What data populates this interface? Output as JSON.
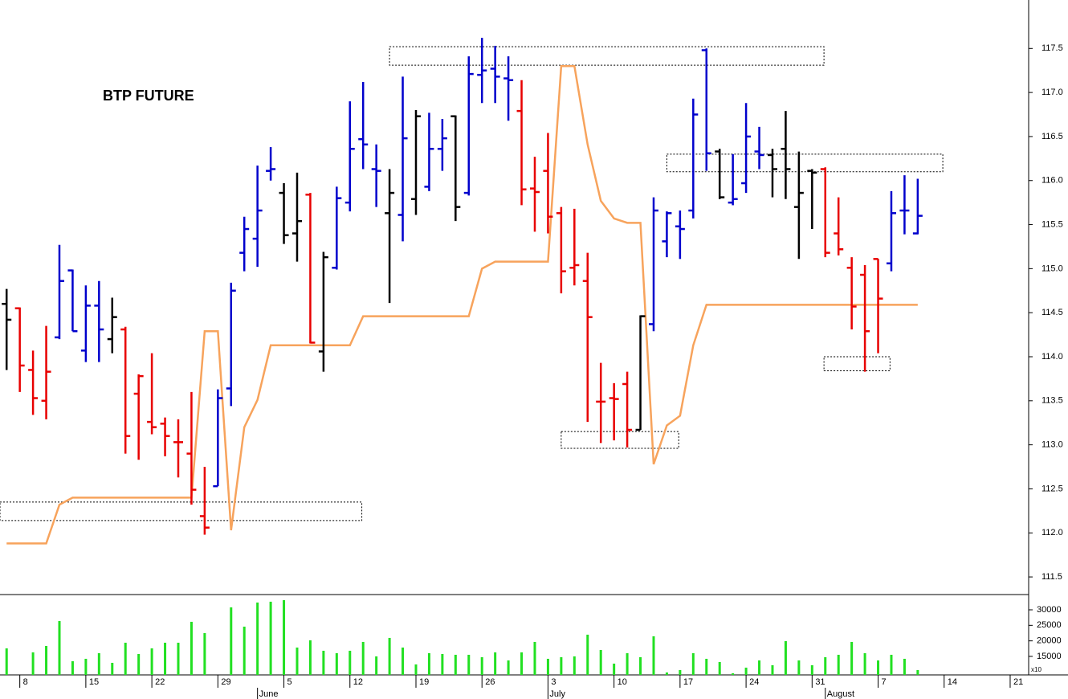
{
  "chart_data": {
    "type": "ohlc",
    "title": "BTP FUTURE",
    "x": [
      0,
      1,
      2,
      3,
      4,
      5,
      6,
      7,
      8,
      9,
      10,
      11,
      12,
      13,
      14,
      15,
      16,
      17,
      18,
      19,
      20,
      21,
      22,
      23,
      24,
      25,
      26,
      27,
      28,
      29,
      30,
      31,
      32,
      33,
      34,
      35,
      36,
      37,
      38,
      39,
      40,
      41,
      42,
      43,
      44,
      45,
      46,
      47,
      48,
      49,
      50,
      51,
      52,
      53,
      54,
      55,
      56,
      57,
      58,
      59,
      60,
      61,
      62,
      63,
      64,
      65,
      66,
      67,
      68,
      69
    ],
    "open": [
      114.6,
      114.55,
      113.85,
      113.5,
      114.22,
      114.98,
      114.07,
      114.58,
      114.2,
      114.31,
      113.58,
      113.26,
      113.24,
      113.03,
      112.9,
      112.19,
      112.53,
      113.64,
      115.18,
      115.34,
      116.11,
      115.86,
      115.4,
      115.84,
      114.06,
      115.01,
      115.75,
      116.47,
      116.13,
      115.63,
      115.61,
      115.79,
      115.93,
      116.36,
      116.73,
      115.86,
      117.2,
      117.27,
      117.16,
      116.79,
      115.91,
      116.11,
      115.63,
      115.01,
      114.86,
      113.49,
      113.53,
      113.69,
      113.17,
      114.37,
      115.31,
      115.48,
      115.66,
      117.48,
      116.33,
      115.75,
      115.97,
      116.33,
      116.29,
      116.36,
      115.7,
      116.11,
      116.13,
      115.4,
      115.01,
      114.93,
      115.11,
      115.06,
      115.66,
      115.4
    ],
    "high": [
      114.77,
      114.56,
      114.07,
      114.35,
      115.27,
      114.99,
      114.81,
      114.86,
      114.67,
      114.34,
      113.8,
      114.04,
      113.31,
      113.29,
      113.6,
      112.75,
      113.63,
      114.84,
      115.59,
      116.17,
      116.38,
      115.97,
      116.09,
      115.86,
      115.19,
      115.93,
      116.9,
      117.12,
      116.41,
      116.13,
      117.18,
      116.8,
      116.77,
      116.7,
      116.74,
      117.41,
      117.62,
      117.53,
      117.41,
      117.14,
      116.27,
      116.54,
      115.7,
      115.68,
      115.18,
      113.93,
      113.7,
      113.83,
      114.47,
      115.81,
      115.65,
      115.66,
      116.93,
      117.5,
      116.36,
      116.3,
      116.88,
      116.61,
      116.36,
      116.79,
      116.33,
      116.13,
      116.15,
      115.81,
      115.13,
      115.04,
      115.11,
      115.88,
      116.06,
      116.02
    ],
    "low": [
      113.85,
      113.6,
      113.34,
      113.29,
      114.2,
      114.29,
      113.94,
      113.94,
      114.04,
      112.9,
      112.83,
      113.12,
      112.87,
      112.63,
      112.32,
      111.98,
      112.53,
      113.44,
      114.97,
      115.02,
      116.0,
      115.28,
      115.08,
      114.15,
      113.83,
      114.99,
      115.65,
      116.13,
      115.7,
      114.61,
      115.31,
      115.61,
      115.88,
      116.11,
      115.54,
      115.83,
      116.88,
      116.88,
      116.68,
      115.72,
      115.42,
      115.4,
      114.72,
      114.81,
      113.26,
      113.02,
      113.05,
      112.97,
      113.17,
      114.29,
      115.13,
      115.11,
      115.57,
      116.11,
      115.79,
      115.72,
      115.86,
      116.13,
      115.81,
      115.79,
      115.11,
      115.45,
      115.13,
      115.15,
      114.31,
      113.83,
      114.04,
      114.97,
      115.39,
      115.39
    ],
    "close": [
      114.42,
      113.9,
      113.53,
      113.83,
      114.86,
      114.29,
      114.58,
      114.31,
      114.45,
      113.1,
      113.78,
      113.2,
      113.1,
      113.03,
      112.49,
      112.06,
      113.53,
      114.75,
      115.45,
      115.66,
      116.13,
      115.38,
      115.54,
      114.16,
      115.13,
      115.8,
      116.36,
      116.41,
      116.11,
      115.86,
      116.48,
      116.73,
      116.36,
      116.48,
      115.7,
      117.21,
      117.25,
      117.18,
      117.14,
      115.9,
      115.87,
      115.59,
      114.97,
      115.04,
      114.45,
      113.49,
      113.52,
      113.17,
      114.46,
      115.66,
      115.63,
      115.45,
      116.75,
      116.31,
      115.81,
      115.79,
      116.5,
      116.29,
      116.13,
      116.13,
      115.86,
      116.09,
      115.18,
      115.22,
      114.57,
      114.29,
      114.66,
      115.63,
      115.66,
      115.6
    ],
    "bar_colors": [
      "#000000",
      "#e80000",
      "#e80000",
      "#e80000",
      "#0000cc",
      "#0000cc",
      "#0000cc",
      "#0000cc",
      "#000000",
      "#e80000",
      "#e80000",
      "#e80000",
      "#e80000",
      "#e80000",
      "#e80000",
      "#e80000",
      "#0000cc",
      "#0000cc",
      "#0000cc",
      "#0000cc",
      "#0000cc",
      "#000000",
      "#000000",
      "#e80000",
      "#000000",
      "#0000cc",
      "#0000cc",
      "#0000cc",
      "#0000cc",
      "#000000",
      "#0000cc",
      "#000000",
      "#0000cc",
      "#0000cc",
      "#000000",
      "#0000cc",
      "#0000cc",
      "#0000cc",
      "#0000cc",
      "#e80000",
      "#e80000",
      "#e80000",
      "#e80000",
      "#e80000",
      "#e80000",
      "#e80000",
      "#e80000",
      "#e80000",
      "#000000",
      "#0000cc",
      "#0000cc",
      "#0000cc",
      "#0000cc",
      "#0000cc",
      "#000000",
      "#0000cc",
      "#0000cc",
      "#0000cc",
      "#000000",
      "#000000",
      "#000000",
      "#000000",
      "#e80000",
      "#e80000",
      "#e80000",
      "#e80000",
      "#e80000",
      "#0000cc",
      "#0000cc",
      "#0000cc"
    ],
    "line": {
      "color": "#f7a35c",
      "values": [
        111.88,
        111.88,
        111.88,
        111.88,
        112.32,
        112.4,
        112.4,
        112.4,
        112.4,
        112.4,
        112.4,
        112.4,
        112.4,
        112.4,
        112.4,
        114.29,
        114.29,
        112.03,
        113.2,
        113.51,
        114.13,
        114.13,
        114.13,
        114.13,
        114.13,
        114.13,
        114.13,
        114.46,
        114.46,
        114.46,
        114.46,
        114.46,
        114.46,
        114.46,
        114.46,
        114.46,
        115.0,
        115.08,
        115.08,
        115.08,
        115.08,
        115.08,
        117.3,
        117.3,
        116.41,
        115.77,
        115.57,
        115.52,
        115.52,
        112.78,
        113.22,
        113.33,
        114.13,
        114.59,
        114.59,
        114.59,
        114.59,
        114.59,
        114.59,
        114.59,
        114.59,
        114.59,
        114.59,
        114.59,
        114.59,
        114.59,
        114.59,
        114.59,
        114.59,
        114.59
      ]
    },
    "zones": [
      {
        "x": [
          29,
          61.9
        ],
        "y": [
          117.31,
          117.52
        ]
      },
      {
        "x": [
          -0.5,
          26.9
        ],
        "y": [
          112.14,
          112.35
        ]
      },
      {
        "x": [
          42,
          50.9
        ],
        "y": [
          112.96,
          113.15
        ]
      },
      {
        "x": [
          50,
          70.9
        ],
        "y": [
          116.1,
          116.3
        ]
      },
      {
        "x": [
          61.9,
          66.9
        ],
        "y": [
          113.84,
          114.0
        ]
      }
    ],
    "xlim": [
      -0.5,
      77.4
    ],
    "xticks": [
      {
        "value": 1,
        "label": "8"
      },
      {
        "value": 6,
        "label": "15"
      },
      {
        "value": 11,
        "label": "22"
      },
      {
        "value": 16,
        "label": "29"
      },
      {
        "value": 21,
        "label": "5"
      },
      {
        "value": 26,
        "label": "12"
      },
      {
        "value": 31,
        "label": "19"
      },
      {
        "value": 36,
        "label": "26"
      },
      {
        "value": 41,
        "label": "3"
      },
      {
        "value": 46,
        "label": "10"
      },
      {
        "value": 51,
        "label": "17"
      },
      {
        "value": 56,
        "label": "24"
      },
      {
        "value": 61,
        "label": "31"
      },
      {
        "value": 66,
        "label": "7"
      },
      {
        "value": 71,
        "label": "14"
      },
      {
        "value": 76,
        "label": "21"
      }
    ],
    "month_ticks": [
      {
        "value": 19,
        "label": "June"
      },
      {
        "value": 41,
        "label": "July"
      },
      {
        "value": 62,
        "label": "August"
      }
    ],
    "ylim": [
      111.3,
      118.05
    ],
    "yticks": [
      111.5,
      {
        "value": 112,
        "label": "112.0"
      },
      112.5,
      {
        "value": 113,
        "label": "113.0"
      },
      113.5,
      {
        "value": 114,
        "label": "114.0"
      },
      114.5,
      {
        "value": 115,
        "label": "115.0"
      },
      115.5,
      {
        "value": 116,
        "label": "116.0"
      },
      116.5,
      {
        "value": 117,
        "label": "117.0"
      },
      117.5
    ],
    "volume": {
      "color": "#22e022",
      "unit_label": "x10",
      "values": [
        17590,
        null,
        16295,
        18367,
        26396,
        13446,
        14223,
        16036,
        12928,
        19403,
        15777,
        17590,
        19403,
        19403,
        26137,
        22511,
        null,
        30799,
        24583,
        32353,
        32612,
        33130,
        17849,
        20180,
        16813,
        16036,
        16813,
        19662,
        15000,
        20957,
        17849,
        12410,
        16036,
        15777,
        15518,
        15518,
        14741,
        16295,
        13705,
        16295,
        19662,
        14223,
        14741,
        15000,
        21993,
        17072,
        12669,
        16036,
        14741,
        21475,
        9820,
        10597,
        16036,
        14223,
        13187,
        9561,
        11374,
        13705,
        12151,
        19921,
        13705,
        12151,
        14741,
        15518,
        19662,
        16036,
        13705,
        15518,
        14223,
        10597
      ],
      "ylim": [
        9040,
        34400
      ],
      "yticks": [
        15000,
        20000,
        25000,
        30000
      ]
    }
  }
}
